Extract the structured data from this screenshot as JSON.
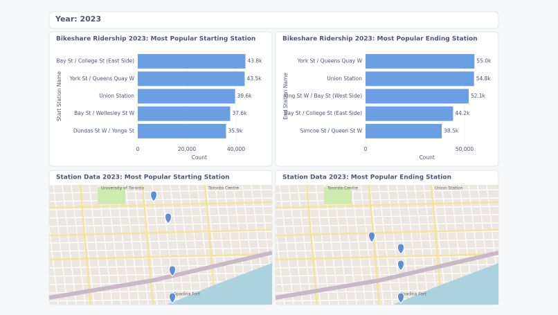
{
  "header": {
    "title": "Year: 2023"
  },
  "chart_data": [
    {
      "type": "bar",
      "orientation": "horizontal",
      "title": "Bikeshare Ridership 2023: Most Popular Starting Station",
      "x_label": "Count",
      "y_label": "Start Station Name",
      "categories": [
        "Bay St / College St (East Side)",
        "York St / Queens Quay W",
        "Union Station",
        "Bay St / Wellesley St W",
        "Dundas St W / Yonge St"
      ],
      "values": [
        43800,
        43500,
        39600,
        37600,
        35900
      ],
      "value_labels": [
        "43.8k",
        "43.5k",
        "39.6k",
        "37.6k",
        "35.9k"
      ],
      "color": "#6a9fe3",
      "xlim": [
        0,
        50000
      ],
      "xticks": [
        0,
        {
          "value": 20000,
          "label": "20,000"
        },
        {
          "value": 40000,
          "label": "40,000"
        }
      ],
      "grid": true
    },
    {
      "type": "bar",
      "orientation": "horizontal",
      "title": "Bikeshare Ridership 2023: Most Popular Ending Station",
      "x_label": "Count",
      "y_label": "End Station Name",
      "categories": [
        "York St / Queens Quay W",
        "Union Station",
        "King St W / Bay St (West Side)",
        "Bay St / College St (East Side)",
        "Simcoe St / Queen St W"
      ],
      "values": [
        55000,
        54800,
        52100,
        44200,
        38500
      ],
      "value_labels": [
        "55.0k",
        "54.8k",
        "52.1k",
        "44.2k",
        "38.5k"
      ],
      "color": "#6a9fe3",
      "xlim": [
        0,
        62000
      ],
      "xticks": [
        0,
        {
          "value": 50000,
          "label": "50,000"
        }
      ],
      "grid": true
    }
  ],
  "maps": [
    {
      "title": "Station Data 2023: Most Popular Starting Station",
      "labels": [
        "University of Toronto",
        "Toronto Centre",
        "Spadina Fort"
      ]
    },
    {
      "title": "Station Data 2023: Most Popular Ending Station",
      "labels": [
        "Toronto Centre",
        "Union Station",
        "Spadina Fort"
      ]
    }
  ]
}
